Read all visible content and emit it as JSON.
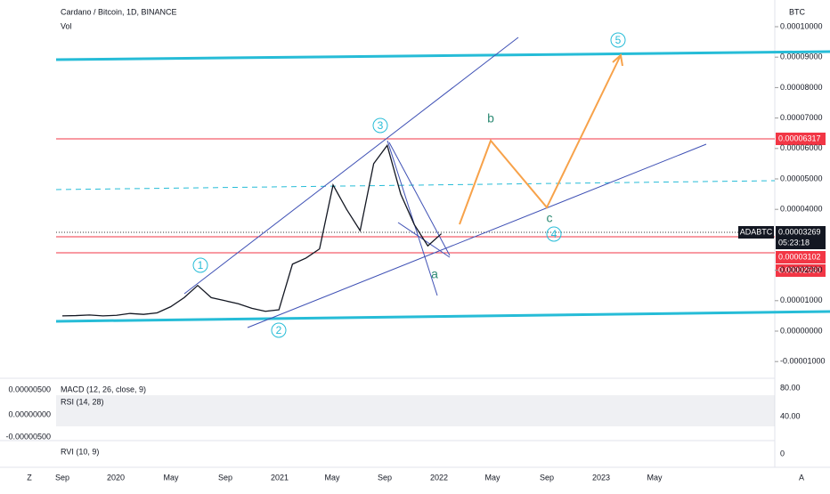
{
  "header": {
    "title": "Cardano / Bitcoin, 1D, BINANCE",
    "volume": "Vol",
    "currency": "BTC"
  },
  "price": {
    "x": [
      "2019-09",
      "2019-10",
      "2019-11",
      "2019-12",
      "2020-01",
      "2020-02",
      "2020-03",
      "2020-04",
      "2020-05",
      "2020-06",
      "2020-07",
      "2020-08",
      "2020-09",
      "2020-10",
      "2020-11",
      "2020-12",
      "2021-01",
      "2021-02",
      "2021-03",
      "2021-04",
      "2021-05",
      "2021-06",
      "2021-07",
      "2021-08",
      "2021-09",
      "2021-10",
      "2021-11",
      "2021-12",
      "2022-01"
    ],
    "values": [
      5e-06,
      5.1e-06,
      5.3e-06,
      5e-06,
      5.2e-06,
      5.8e-06,
      5.5e-06,
      6e-06,
      8e-06,
      1.1e-05,
      1.5e-05,
      1.1e-05,
      1e-05,
      9e-06,
      7.5e-06,
      6.5e-06,
      7e-06,
      2.2e-05,
      2.4e-05,
      2.7e-05,
      4.8e-05,
      4e-05,
      3.3e-05,
      5.5e-05,
      6.1e-05,
      4.5e-05,
      3.5e-05,
      2.8e-05,
      3.2e-05
    ],
    "color": "#131722"
  },
  "yticks": [
    {
      "value": 0.0001,
      "label": "0.00010000"
    },
    {
      "value": 9e-05,
      "label": "0.00009000"
    },
    {
      "value": 8e-05,
      "label": "0.00008000"
    },
    {
      "value": 7e-05,
      "label": "0.00007000"
    },
    {
      "value": 6e-05,
      "label": "0.00006000"
    },
    {
      "value": 5e-05,
      "label": "0.00005000"
    },
    {
      "value": 4e-05,
      "label": "0.00004000"
    },
    {
      "value": 2e-05,
      "label": "0.00002000"
    },
    {
      "value": 1e-05,
      "label": "0.00001000"
    },
    {
      "value": 0,
      "label": "0.00000000"
    },
    {
      "value": -1e-05,
      "label": "-0.00001000"
    }
  ],
  "xticks": [
    "Sep",
    "2020",
    "May",
    "Sep",
    "2021",
    "May",
    "Sep",
    "2022",
    "May",
    "Sep",
    "2023",
    "May"
  ],
  "price_tags": {
    "symbol": "ADABTC",
    "last": "0.00003269",
    "countdown": "05:23:18",
    "levels": [
      "0.00006317",
      "0.00003102",
      "0.00002560"
    ]
  },
  "waves": [
    "1",
    "2",
    "3",
    "4",
    "5"
  ],
  "corrections": [
    "a",
    "b",
    "c"
  ],
  "indicators": {
    "macd": "MACD (12, 26, close, 9)",
    "rsi": "RSI (14, 28)",
    "rvi": "RVI (10, 9)",
    "left_ticks": [
      "0.00000500",
      "0.00000000",
      "-0.00000500"
    ],
    "right_ticks": [
      "80.00",
      "40.00",
      "0"
    ]
  },
  "corners": {
    "left": "Z",
    "right": "A"
  }
}
